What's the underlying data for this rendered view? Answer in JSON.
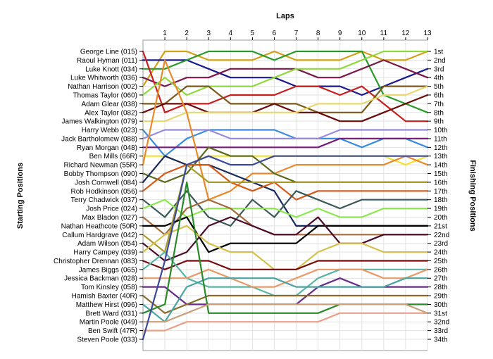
{
  "chart_data": {
    "type": "line",
    "title": "Laps",
    "ylabel_left": "Starting Positions",
    "ylabel_right": "Finishing Positions",
    "x_ticks": [
      1,
      2,
      3,
      4,
      5,
      6,
      7,
      8,
      9,
      10,
      11,
      12,
      13
    ],
    "starting_labels": [
      "George Line (015)",
      "Raoul Hyman (011)",
      "Luke Knott (034)",
      "Luke Whitworth (036)",
      "Nathan Harrison (002)",
      "Thomas Taylor (060)",
      "Adam Glear (038)",
      "Alex Taylor (082)",
      "James Walkington (079)",
      "Harry Webb (023)",
      "Jack Bartholomew (088)",
      "Ryan Morgan (048)",
      "Ben Mills (66R)",
      "Richard Newman (55R)",
      "Bobby Thompson (090)",
      "Josh Cornwell (084)",
      "Rob Hodkinson (056)",
      "Terry Chadwick (037)",
      "Josh Price (024)",
      "Max Bladon (027)",
      "Nathan Heathcote (50R)",
      "Callum Hardgrave (042)",
      "Adam Wilson (054)",
      "Harry Campey (039)",
      "Christopher Drennan (083)",
      "James Biggs (065)",
      "Jessica Backman (028)",
      "Tom Kinsley (058)",
      "Hamish Baxter (40R)",
      "Matthew Hirst (096)",
      "Brett Ward (031)",
      "Martin Poole (049)",
      "Ben Swift (47R)",
      "Steven Poole (033)"
    ],
    "finishing_labels": [
      "1st",
      "2nd",
      "3rd",
      "4th",
      "5th",
      "6th",
      "7th",
      "8th",
      "9th",
      "10th",
      "11th",
      "12th",
      "13th",
      "14th",
      "15th",
      "16th",
      "17th",
      "18th",
      "19th",
      "20th",
      "21st",
      "22nd",
      "23rd",
      "24th",
      "25th",
      "26th",
      "27th",
      "28th",
      "29th",
      "30th",
      "31st",
      "32nd",
      "33rd",
      "34th"
    ],
    "y_range": [
      1,
      34
    ],
    "x_range": [
      0,
      13
    ],
    "grid": true,
    "series": [
      {
        "color": "#d4a017",
        "positions": [
          5,
          1,
          1,
          2,
          2,
          2,
          1,
          2,
          2,
          2,
          1,
          2,
          2,
          1
        ]
      },
      {
        "color": "#1a1a8c",
        "positions": [
          2,
          2,
          2,
          3,
          4,
          4,
          4,
          5,
          5,
          5,
          6,
          5,
          4,
          3
        ]
      },
      {
        "color": "#2a9a2a",
        "positions": [
          3,
          3,
          2,
          1,
          1,
          1,
          2,
          1,
          1,
          1,
          1,
          6,
          7,
          8
        ]
      },
      {
        "color": "#7a1a4a",
        "positions": [
          4,
          5,
          4,
          4,
          3,
          3,
          3,
          3,
          4,
          4,
          3,
          2,
          3,
          4
        ]
      },
      {
        "color": "#c81e1e",
        "positions": [
          1,
          8,
          7,
          7,
          6,
          6,
          6,
          5,
          5,
          6,
          5,
          7,
          9,
          9
        ]
      },
      {
        "color": "#8fd93a",
        "positions": [
          6,
          4,
          6,
          5,
          5,
          5,
          4,
          3,
          3,
          3,
          2,
          1,
          1,
          1
        ]
      },
      {
        "color": "#7a5a1a",
        "positions": [
          7,
          7,
          5,
          5,
          7,
          7,
          7,
          7,
          8,
          8,
          8,
          5,
          5,
          5
        ]
      },
      {
        "color": "#6a0a0a",
        "positions": [
          8,
          7,
          7,
          8,
          8,
          8,
          7,
          8,
          8,
          9,
          9,
          8,
          7,
          6
        ]
      },
      {
        "color": "#e8d870",
        "positions": [
          9,
          9,
          8,
          8,
          8,
          8,
          8,
          8,
          7,
          7,
          7,
          6,
          6,
          5
        ]
      },
      {
        "color": "#3a8adf",
        "positions": [
          10,
          13,
          11,
          10,
          10,
          10,
          10,
          11,
          11,
          11,
          12,
          11,
          11,
          12
        ]
      },
      {
        "color": "#9a8adf",
        "positions": [
          11,
          10,
          10,
          10,
          11,
          11,
          11,
          11,
          11,
          10,
          10,
          10,
          10,
          10
        ]
      },
      {
        "color": "#7a1a7a",
        "positions": [
          12,
          12,
          12,
          12,
          12,
          12,
          12,
          12,
          12,
          11,
          11,
          11,
          11,
          11
        ]
      },
      {
        "color": "#f0e030",
        "positions": [
          13,
          13,
          14,
          13,
          13,
          13,
          13,
          13,
          13,
          13,
          13,
          13,
          14,
          13
        ]
      },
      {
        "color": "#e88a2a",
        "positions": [
          14,
          2,
          8,
          18,
          17,
          15,
          15,
          14,
          14,
          14,
          14,
          14,
          13,
          14
        ]
      },
      {
        "color": "#5a6a1a",
        "positions": [
          15,
          16,
          15,
          12,
          13,
          13,
          15,
          16,
          16,
          16,
          16,
          16,
          16,
          16
        ]
      },
      {
        "color": "#1a2a5a",
        "positions": [
          16,
          13,
          14,
          14,
          15,
          16,
          17,
          21,
          21,
          21,
          21,
          21,
          21,
          21
        ]
      },
      {
        "color": "#d45a1a",
        "positions": [
          17,
          15,
          14,
          14,
          16,
          17,
          16,
          18,
          17,
          17,
          17,
          17,
          17,
          17
        ]
      },
      {
        "color": "#3a5a5a",
        "positions": [
          18,
          20,
          17,
          20,
          21,
          18,
          20,
          17,
          18,
          19,
          18,
          18,
          18,
          18
        ]
      },
      {
        "color": "#8ae84a",
        "positions": [
          19,
          18,
          20,
          19,
          19,
          19,
          19,
          20,
          19,
          20,
          20,
          19,
          19,
          19
        ]
      },
      {
        "color": "#a86a3a",
        "positions": [
          20,
          22,
          19,
          18,
          19,
          21,
          22,
          22,
          22,
          22,
          22,
          22,
          22,
          22
        ]
      },
      {
        "color": "#000000",
        "positions": [
          21,
          21,
          20,
          24,
          23,
          23,
          23,
          23,
          21,
          21,
          21,
          21,
          21,
          21
        ]
      },
      {
        "color": "#a89a2a",
        "positions": [
          22,
          24,
          14,
          16,
          16,
          16,
          16,
          16,
          16,
          16,
          16,
          16,
          16,
          16
        ]
      },
      {
        "color": "#4a0a2a",
        "positions": [
          23,
          25,
          24,
          21,
          20,
          21,
          22,
          22,
          20,
          23,
          23,
          22,
          22,
          22
        ]
      },
      {
        "color": "#d4c04a",
        "positions": [
          24,
          22,
          21,
          23,
          24,
          24,
          26,
          26,
          24,
          23,
          23,
          24,
          24,
          24
        ]
      },
      {
        "color": "#7a0a0a",
        "positions": [
          25,
          26,
          25,
          25,
          26,
          26,
          26,
          26,
          25,
          25,
          25,
          25,
          25,
          25
        ]
      },
      {
        "color": "#5ab4a4",
        "positions": [
          26,
          24,
          27,
          28,
          28,
          28,
          29,
          29,
          27,
          26,
          26,
          26,
          26,
          26
        ]
      },
      {
        "color": "#e89a6a",
        "positions": [
          27,
          27,
          27,
          26,
          27,
          28,
          28,
          27,
          26,
          26,
          26,
          27,
          27,
          26
        ]
      },
      {
        "color": "#6a2a8a",
        "positions": [
          28,
          28,
          30,
          30,
          30,
          30,
          30,
          30,
          28,
          27,
          28,
          28,
          28,
          28
        ]
      },
      {
        "color": "#8a6a2a",
        "positions": [
          29,
          31,
          30,
          29,
          29,
          29,
          29,
          29,
          29,
          29,
          29,
          29,
          29,
          29
        ]
      },
      {
        "color": "#4aa4a4",
        "positions": [
          30,
          32,
          28,
          27,
          27,
          27,
          27,
          28,
          28,
          28,
          28,
          28,
          27,
          27
        ]
      },
      {
        "color": "#2a8a2a",
        "positions": [
          31,
          30,
          16,
          31,
          31,
          31,
          31,
          31,
          31,
          30,
          30,
          30,
          30,
          30
        ]
      },
      {
        "color": "#c8a07a",
        "positions": [
          32,
          32,
          31,
          30,
          30,
          30,
          30,
          30,
          30,
          30,
          30,
          30,
          30,
          31
        ]
      },
      {
        "color": "#e8a08a",
        "positions": [
          33,
          33,
          32,
          32,
          32,
          32,
          32,
          32,
          32,
          31,
          31,
          31,
          31,
          31
        ]
      },
      {
        "color": "#3a4a9a",
        "positions": [
          34,
          25,
          14,
          13,
          14,
          14,
          13,
          13,
          13,
          13,
          13,
          13,
          13,
          13
        ]
      }
    ]
  }
}
